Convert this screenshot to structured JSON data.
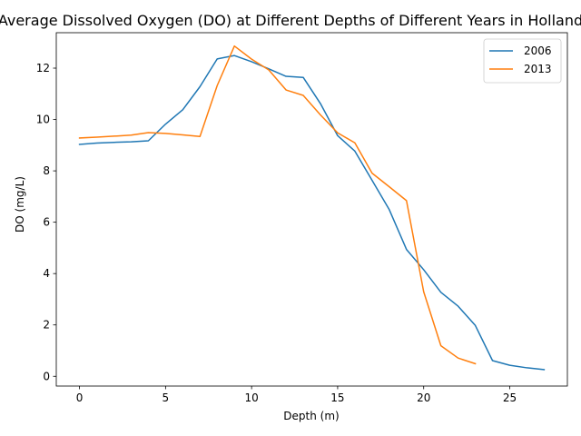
{
  "chart_data": {
    "type": "line",
    "title": "Average Dissolved Oxygen (DO) at Different Depths of Different Years in Holland",
    "xlabel": "Depth (m)",
    "ylabel": "DO (mg/L)",
    "xlim": [
      -1.35,
      28.35
    ],
    "ylim": [
      -0.38,
      13.38
    ],
    "xticks": [
      0,
      5,
      10,
      15,
      20,
      25
    ],
    "yticks": [
      0,
      2,
      4,
      6,
      8,
      10,
      12
    ],
    "grid": false,
    "legend_position": "upper right",
    "series": [
      {
        "name": "2006",
        "color": "#1f77b4",
        "x": [
          0,
          1,
          2,
          3,
          4,
          5,
          6,
          7,
          8,
          9,
          10,
          11,
          12,
          13,
          14,
          15,
          16,
          17,
          18,
          19,
          20,
          21,
          22,
          23,
          24,
          25,
          26,
          27
        ],
        "y": [
          9.03,
          9.08,
          9.11,
          9.13,
          9.17,
          9.82,
          10.38,
          11.28,
          12.36,
          12.49,
          12.25,
          11.97,
          11.68,
          11.64,
          10.62,
          9.37,
          8.77,
          7.63,
          6.49,
          4.94,
          4.15,
          3.27,
          2.73,
          1.98,
          0.61,
          0.43,
          0.33,
          0.26
        ]
      },
      {
        "name": "2013",
        "color": "#ff7f0e",
        "x": [
          0,
          1,
          2,
          3,
          4,
          5,
          6,
          7,
          8,
          9,
          10,
          11,
          12,
          13,
          14,
          15,
          16,
          17,
          18,
          19,
          20,
          21,
          22,
          23
        ],
        "y": [
          9.28,
          9.31,
          9.35,
          9.39,
          9.49,
          9.46,
          9.4,
          9.34,
          11.32,
          12.86,
          12.35,
          11.93,
          11.15,
          10.94,
          10.18,
          9.48,
          9.09,
          7.91,
          7.38,
          6.84,
          3.29,
          1.19,
          0.71,
          0.49
        ]
      }
    ]
  }
}
